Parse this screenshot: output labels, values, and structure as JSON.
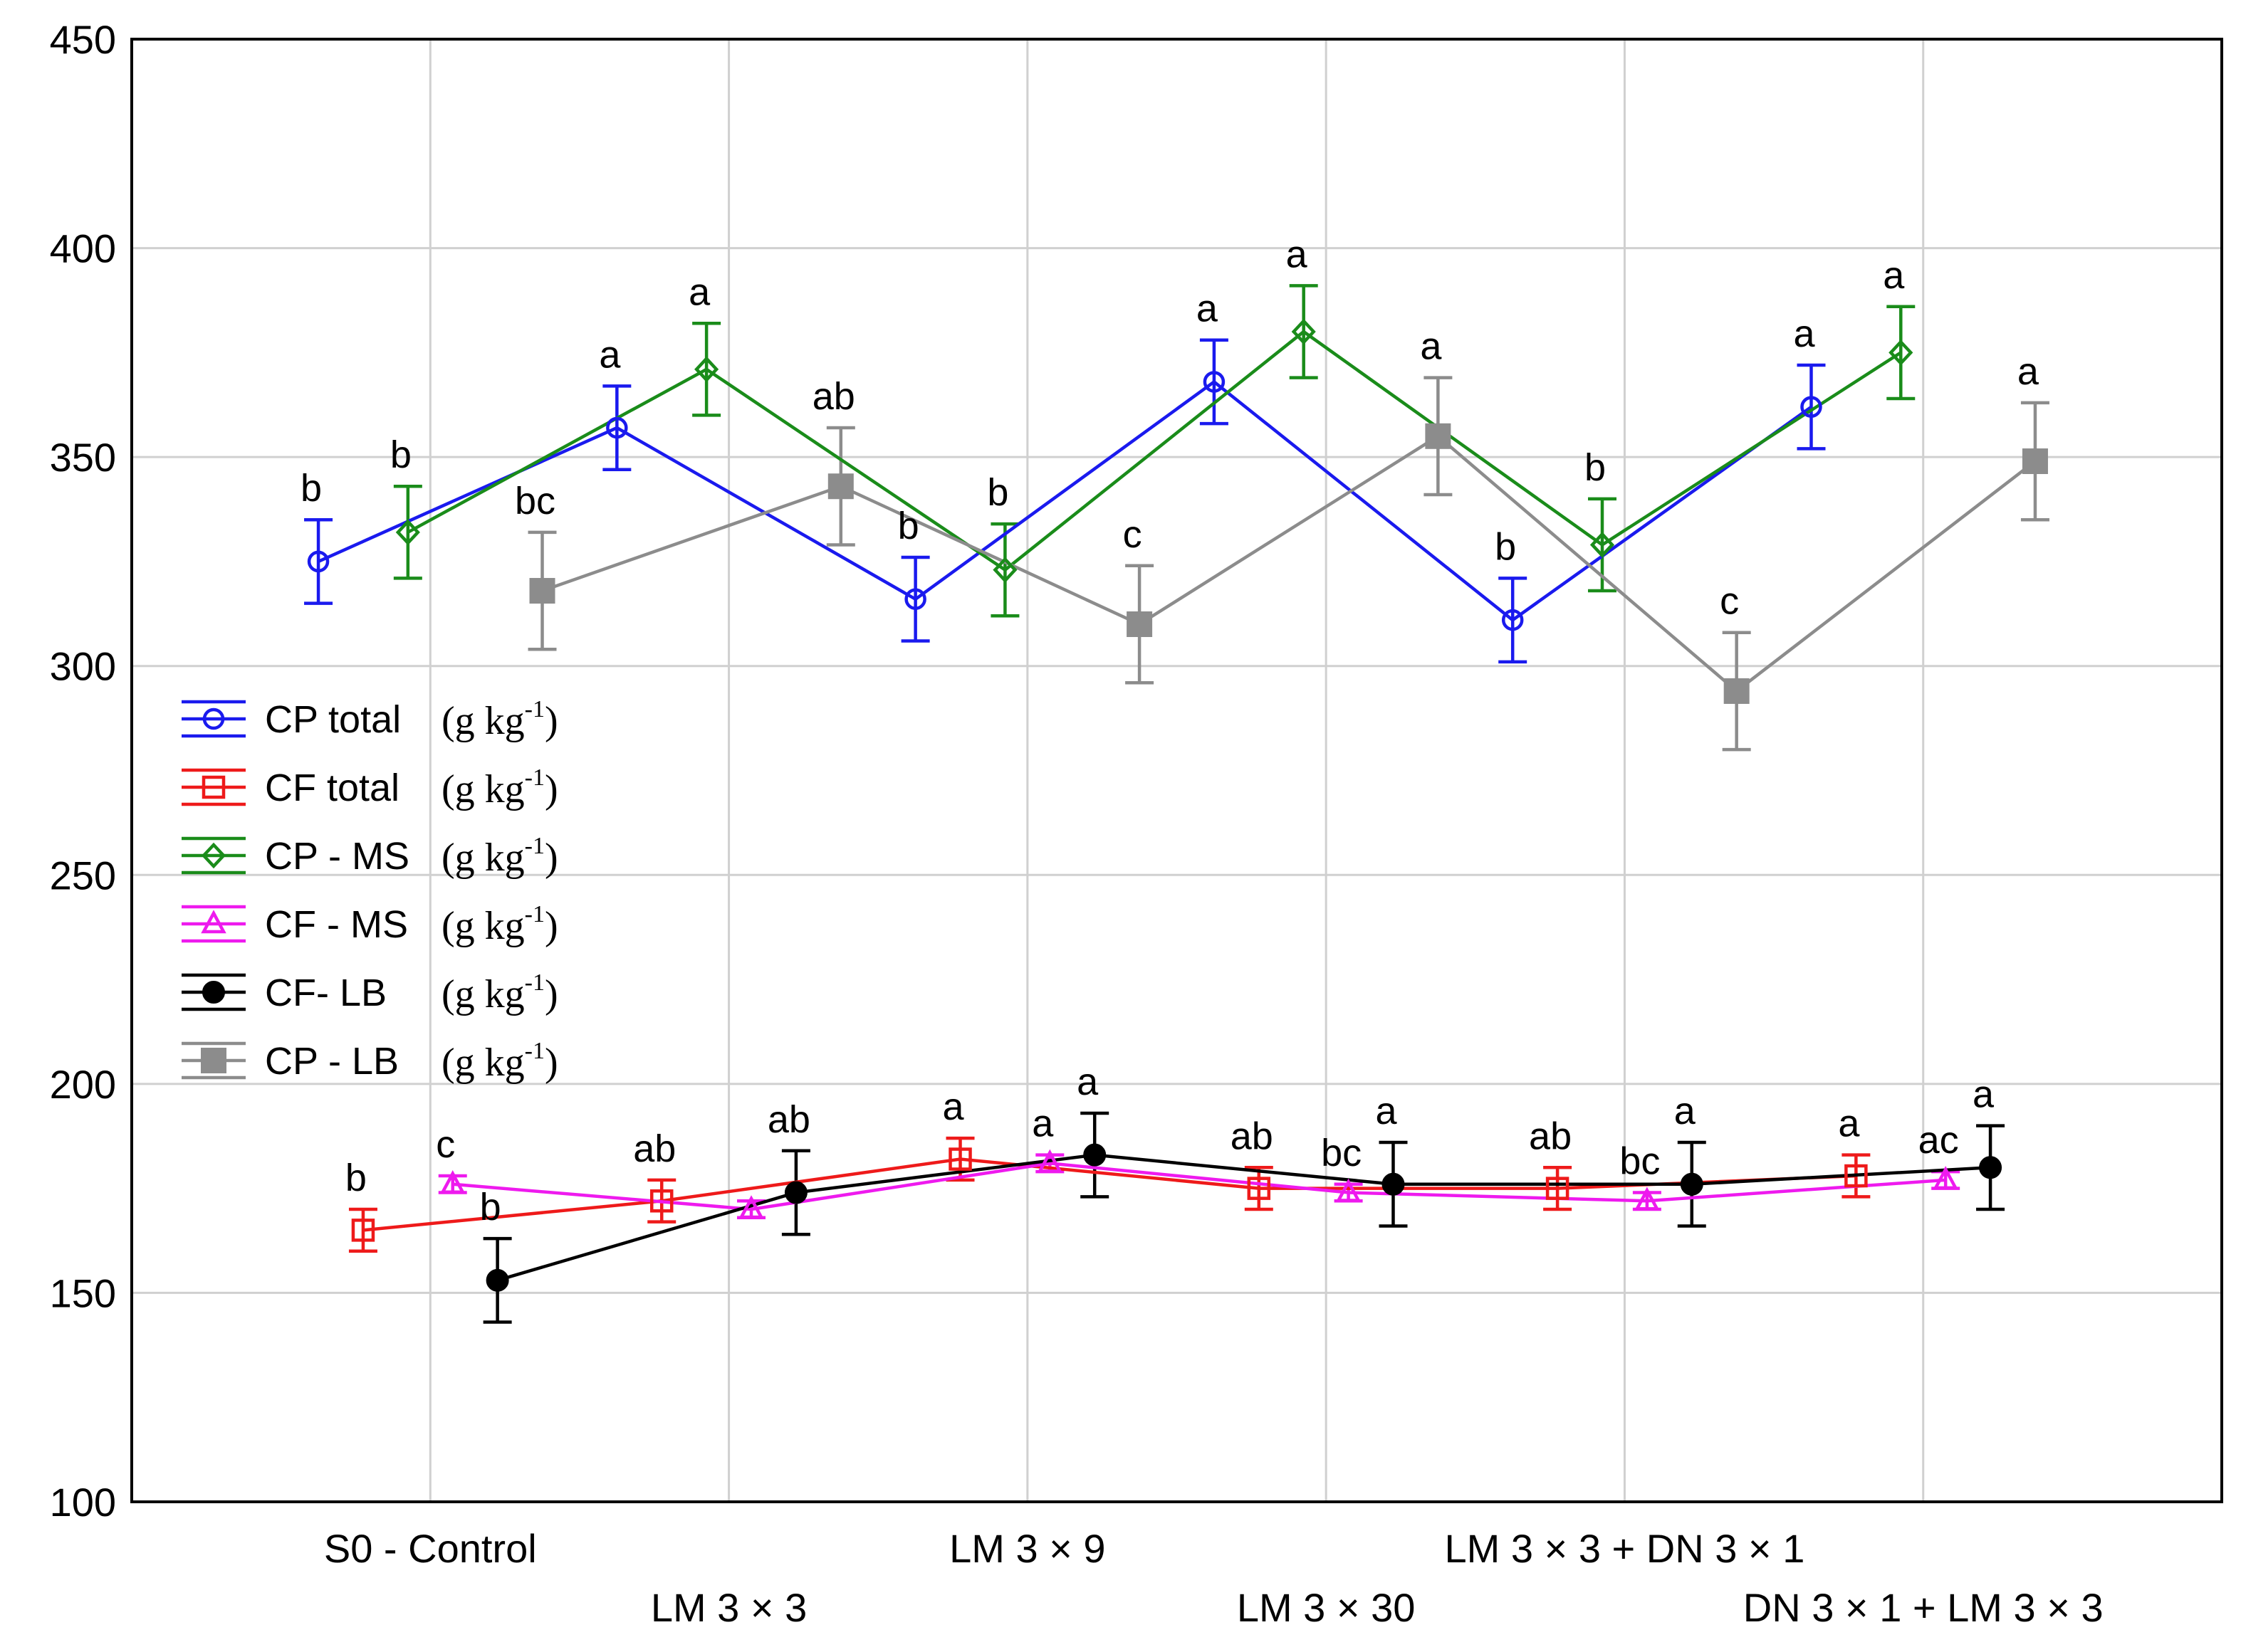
{
  "chart_data": {
    "type": "line",
    "title": "",
    "xlabel": "",
    "ylabel": "",
    "ylim": [
      100,
      450
    ],
    "yticks": [
      100,
      150,
      200,
      250,
      300,
      350,
      400,
      450
    ],
    "grid": true,
    "legend_position": "middle-left",
    "unit_label": "(g kg",
    "unit_exponent": "-1",
    "unit_close": ")",
    "categories": [
      "S0 - Control",
      "LM 3 × 3",
      "LM 3 × 9",
      "LM 3 × 30",
      "LM 3 × 3 + DN 3 × 1",
      "DN 3 × 1 + LM 3 × 3"
    ],
    "series": [
      {
        "name": "CP total",
        "color": "#1a1aee",
        "marker": "circle-open",
        "offset": -0.375,
        "values": [
          325,
          357,
          316,
          368,
          311,
          362
        ],
        "errors": [
          10,
          10,
          10,
          10,
          10,
          10
        ],
        "letters": [
          "b",
          "a",
          "b",
          "a",
          "b",
          "a"
        ]
      },
      {
        "name": "CF total",
        "color": "#ee1a1a",
        "marker": "square-open",
        "offset": -0.225,
        "values": [
          165,
          172,
          182,
          175,
          175,
          178
        ],
        "errors": [
          5,
          5,
          5,
          5,
          5,
          5
        ],
        "letters": [
          "b",
          "ab",
          "a",
          "ab",
          "ab",
          "a"
        ]
      },
      {
        "name": "CP - MS",
        "color": "#1a8c1a",
        "marker": "diamond-open",
        "offset": -0.075,
        "values": [
          332,
          371,
          323,
          380,
          329,
          375
        ],
        "errors": [
          11,
          11,
          11,
          11,
          11,
          11
        ],
        "letters": [
          "b",
          "a",
          "b",
          "a",
          "b",
          "a"
        ]
      },
      {
        "name": "CF - MS",
        "color": "#ee1aee",
        "marker": "triangle-open",
        "offset": 0.075,
        "values": [
          176,
          170,
          181,
          174,
          172,
          177
        ],
        "errors": [
          2,
          2,
          2,
          2,
          2,
          2
        ],
        "letters": [
          "c",
          "",
          "a",
          "bc",
          "bc",
          "ac"
        ]
      },
      {
        "name": "CF- LB",
        "color": "#000000",
        "marker": "circle-filled",
        "offset": 0.225,
        "values": [
          153,
          174,
          183,
          176,
          176,
          180
        ],
        "errors": [
          10,
          10,
          10,
          10,
          10,
          10
        ],
        "letters": [
          "b",
          "ab",
          "a",
          "a",
          "a",
          "a"
        ]
      },
      {
        "name": "CP - LB",
        "color": "#8c8c8c",
        "marker": "square-filled",
        "offset": 0.375,
        "values": [
          318,
          343,
          310,
          355,
          294,
          349
        ],
        "errors": [
          14,
          14,
          14,
          14,
          14,
          14
        ],
        "letters": [
          "bc",
          "ab",
          "c",
          "a",
          "c",
          "a"
        ]
      }
    ]
  }
}
